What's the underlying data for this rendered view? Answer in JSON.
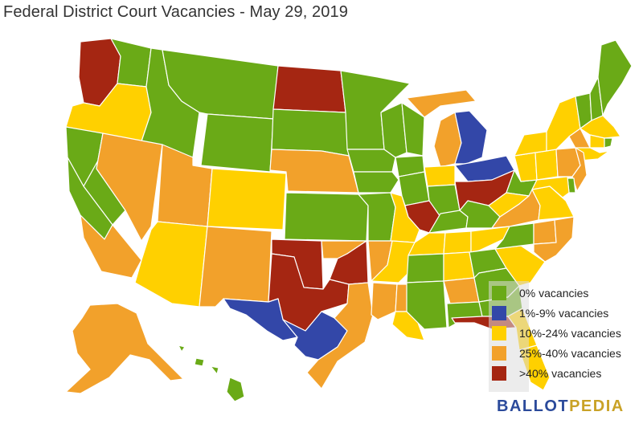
{
  "title": "Federal District Court Vacancies - May 29, 2019",
  "colors": {
    "green": "#6aaa17",
    "blue": "#3347a8",
    "yellow": "#ffd000",
    "orange": "#f2a12b",
    "red": "#a52612",
    "border": "#ffffff"
  },
  "legend": [
    {
      "label": "0% vacancies",
      "color": "#6aaa17",
      "category": "green"
    },
    {
      "label": "1%-9% vacancies",
      "color": "#3347a8",
      "category": "blue"
    },
    {
      "label": "10%-24% vacancies",
      "color": "#ffd000",
      "category": "yellow"
    },
    {
      "label": "25%-40% vacancies",
      "color": "#f2a12b",
      "category": "orange"
    },
    {
      "label": ">40% vacancies",
      "color": "#a52612",
      "category": "red"
    }
  ],
  "logo": {
    "part1": "BALLOT",
    "part2": "PEDIA"
  },
  "regions": {
    "WA-west": "red",
    "WA-east": "green",
    "OR": "yellow",
    "ID": "green",
    "MT": "green",
    "WY": "green",
    "ND": "red",
    "SD": "green",
    "NE": "orange",
    "MN": "green",
    "CA-north": "green",
    "CA-east": "green",
    "CA-central": "green",
    "CA-south": "orange",
    "NV": "orange",
    "UT": "orange",
    "CO": "yellow",
    "AZ": "yellow",
    "NM": "orange",
    "KS": "green",
    "OK-west": "red",
    "OK-north": "orange",
    "OK-east": "red",
    "TX-north": "red",
    "TX-west": "blue",
    "TX-south": "blue",
    "TX-east": "orange",
    "IA-north": "green",
    "IA-south": "green",
    "MO-west": "green",
    "MO-east": "yellow",
    "AR-west": "orange",
    "AR-east": "yellow",
    "LA-west": "orange",
    "LA-middle": "orange",
    "LA-east": "yellow",
    "WI-west": "green",
    "WI-east": "green",
    "IL-north": "green",
    "IL-central": "green",
    "IL-south": "red",
    "MI-west": "orange",
    "MI-east": "blue",
    "IN-north": "yellow",
    "IN-south": "green",
    "OH-north": "blue",
    "OH-south": "red",
    "KY-west": "green",
    "KY-east": "green",
    "TN-west": "yellow",
    "TN-middle": "yellow",
    "TN-east": "yellow",
    "MS-north": "green",
    "MS-south": "green",
    "AL-north": "yellow",
    "AL-middle": "orange",
    "AL-south": "green",
    "GA-north": "green",
    "GA-middle": "green",
    "GA-south": "green",
    "FL-north": "red",
    "FL-middle": "yellow",
    "FL-south": "yellow",
    "SC": "yellow",
    "NC-west": "green",
    "NC-middle": "orange",
    "NC-east": "orange",
    "VA-west": "orange",
    "VA-east": "yellow",
    "WV-north": "green",
    "WV-south": "yellow",
    "PA-west": "yellow",
    "PA-middle": "yellow",
    "PA-east": "orange",
    "NY-west": "yellow",
    "NY-north": "yellow",
    "NY-east": "orange",
    "NY-south": "yellow",
    "VT": "green",
    "NH": "green",
    "ME": "green",
    "MA": "yellow",
    "CT": "yellow",
    "RI": "green",
    "NJ": "orange",
    "DE": "green",
    "MD": "yellow",
    "AK": "orange",
    "HI": "green"
  }
}
